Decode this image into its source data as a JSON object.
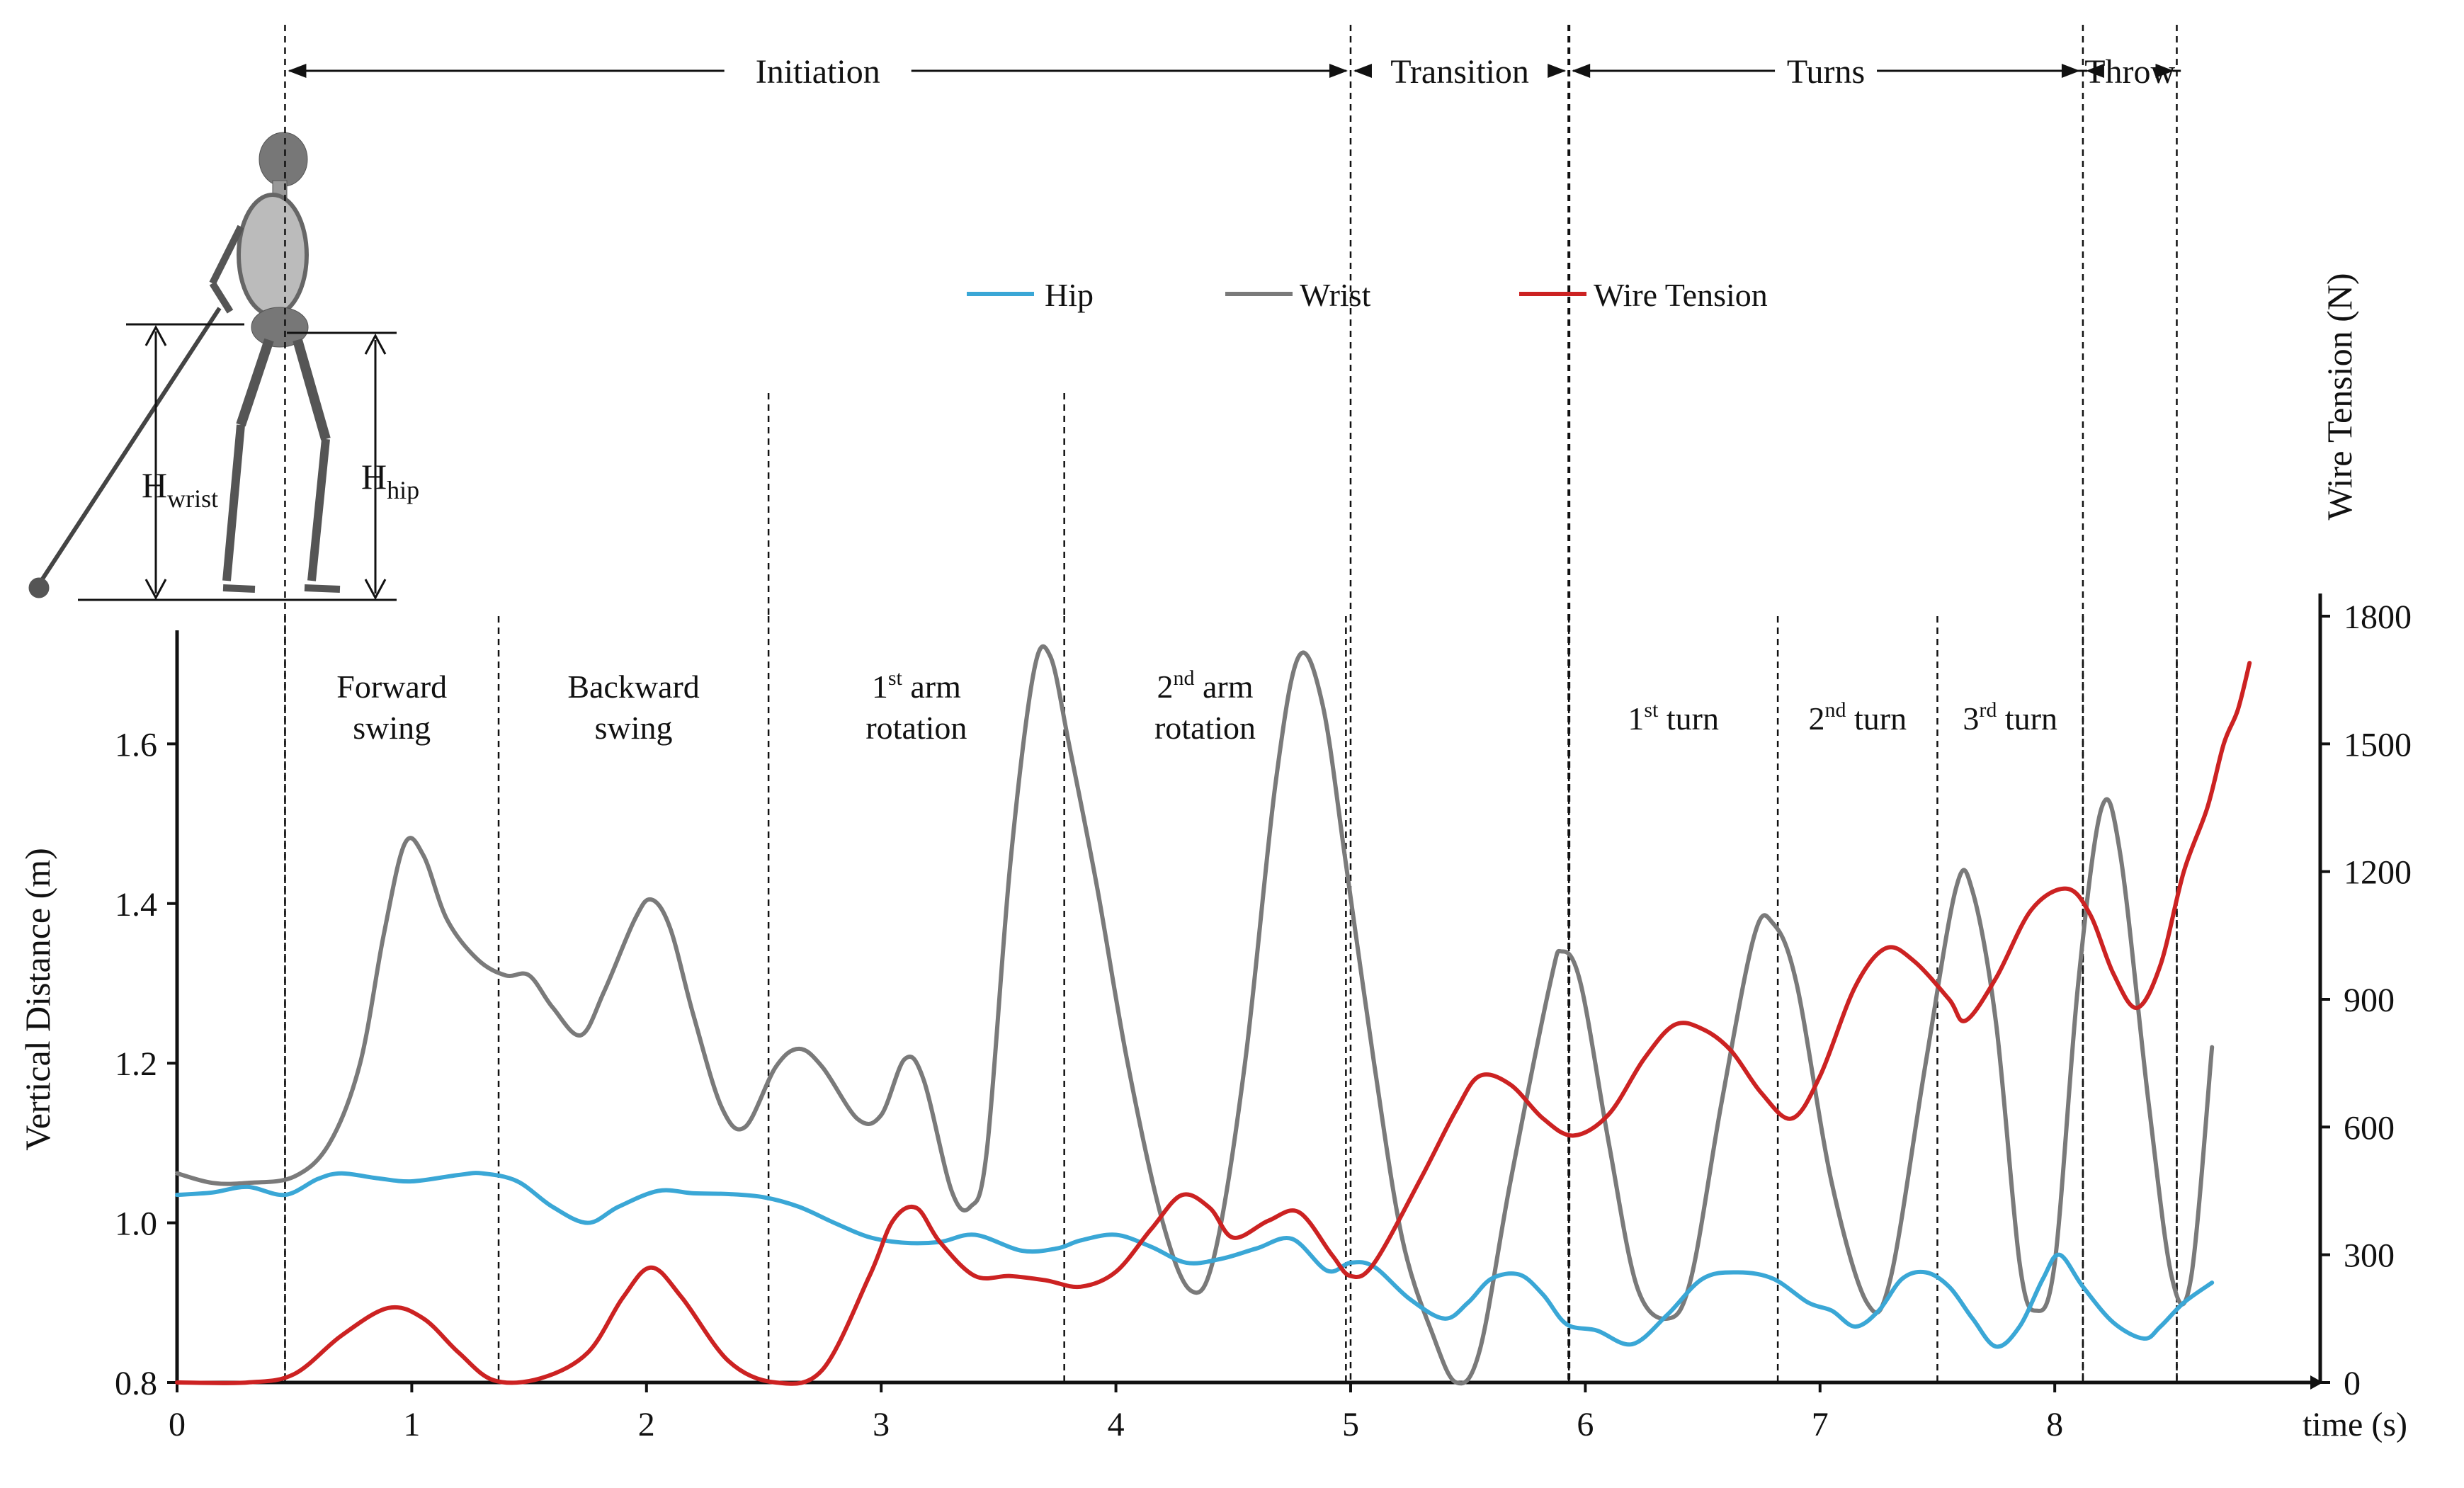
{
  "chart_data": {
    "type": "line",
    "xlabel": "time (s)",
    "ylabel": "Vertical Distance (m)",
    "y2label": "Wire Tension (N)",
    "xlim": [
      0,
      8.6
    ],
    "ylim": [
      0.8,
      1.76
    ],
    "y2lim": [
      0,
      1800
    ],
    "xticks": [
      "0",
      "1",
      "2",
      "3",
      "4",
      "5",
      "6",
      "7",
      "8"
    ],
    "yticks": [
      "0.8",
      "1.0",
      "1.2",
      "1.4",
      "1.6"
    ],
    "y2ticks": [
      "0",
      "300",
      "600",
      "900",
      "1200",
      "1500",
      "1800"
    ],
    "legend_position": "top-center",
    "series": [
      {
        "name": "Hip",
        "axis": "left",
        "color": "#3aa7d6",
        "points": [
          [
            0.0,
            1.035
          ],
          [
            0.15,
            1.038
          ],
          [
            0.3,
            1.045
          ],
          [
            0.46,
            1.035
          ],
          [
            0.6,
            1.055
          ],
          [
            0.7,
            1.062
          ],
          [
            0.85,
            1.056
          ],
          [
            1.0,
            1.052
          ],
          [
            1.2,
            1.06
          ],
          [
            1.3,
            1.062
          ],
          [
            1.45,
            1.052
          ],
          [
            1.6,
            1.02
          ],
          [
            1.75,
            1.0
          ],
          [
            1.88,
            1.02
          ],
          [
            2.05,
            1.04
          ],
          [
            2.2,
            1.037
          ],
          [
            2.35,
            1.036
          ],
          [
            2.5,
            1.032
          ],
          [
            2.65,
            1.02
          ],
          [
            2.8,
            1.0
          ],
          [
            2.95,
            0.982
          ],
          [
            3.1,
            0.975
          ],
          [
            3.25,
            0.976
          ],
          [
            3.4,
            0.985
          ],
          [
            3.6,
            0.965
          ],
          [
            3.75,
            0.968
          ],
          [
            3.85,
            0.978
          ],
          [
            4.0,
            0.985
          ],
          [
            4.15,
            0.97
          ],
          [
            4.3,
            0.95
          ],
          [
            4.45,
            0.955
          ],
          [
            4.6,
            0.968
          ],
          [
            4.75,
            0.98
          ],
          [
            4.9,
            0.94
          ],
          [
            5.0,
            0.95
          ],
          [
            5.1,
            0.945
          ],
          [
            5.25,
            0.905
          ],
          [
            5.4,
            0.88
          ],
          [
            5.5,
            0.9
          ],
          [
            5.6,
            0.93
          ],
          [
            5.72,
            0.935
          ],
          [
            5.82,
            0.91
          ],
          [
            5.92,
            0.873
          ],
          [
            6.05,
            0.865
          ],
          [
            6.2,
            0.848
          ],
          [
            6.35,
            0.885
          ],
          [
            6.5,
            0.93
          ],
          [
            6.65,
            0.938
          ],
          [
            6.8,
            0.93
          ],
          [
            6.95,
            0.9
          ],
          [
            7.05,
            0.89
          ],
          [
            7.15,
            0.87
          ],
          [
            7.25,
            0.89
          ],
          [
            7.35,
            0.93
          ],
          [
            7.45,
            0.938
          ],
          [
            7.55,
            0.92
          ],
          [
            7.65,
            0.88
          ],
          [
            7.75,
            0.845
          ],
          [
            7.85,
            0.87
          ],
          [
            7.95,
            0.93
          ],
          [
            8.02,
            0.96
          ],
          [
            8.12,
            0.92
          ],
          [
            8.25,
            0.875
          ],
          [
            8.38,
            0.855
          ],
          [
            8.45,
            0.87
          ],
          [
            8.55,
            0.9
          ],
          [
            8.67,
            0.925
          ]
        ]
      },
      {
        "name": "Wrist",
        "axis": "left",
        "color": "#7a7a7a",
        "points": [
          [
            0.0,
            1.062
          ],
          [
            0.15,
            1.05
          ],
          [
            0.3,
            1.05
          ],
          [
            0.5,
            1.058
          ],
          [
            0.65,
            1.1
          ],
          [
            0.78,
            1.2
          ],
          [
            0.88,
            1.36
          ],
          [
            0.97,
            1.475
          ],
          [
            1.05,
            1.46
          ],
          [
            1.15,
            1.38
          ],
          [
            1.28,
            1.33
          ],
          [
            1.4,
            1.31
          ],
          [
            1.5,
            1.31
          ],
          [
            1.6,
            1.27
          ],
          [
            1.72,
            1.235
          ],
          [
            1.82,
            1.29
          ],
          [
            1.95,
            1.38
          ],
          [
            2.02,
            1.405
          ],
          [
            2.1,
            1.37
          ],
          [
            2.2,
            1.26
          ],
          [
            2.32,
            1.145
          ],
          [
            2.42,
            1.12
          ],
          [
            2.55,
            1.195
          ],
          [
            2.65,
            1.218
          ],
          [
            2.75,
            1.195
          ],
          [
            2.9,
            1.13
          ],
          [
            3.0,
            1.135
          ],
          [
            3.1,
            1.205
          ],
          [
            3.18,
            1.18
          ],
          [
            3.3,
            1.04
          ],
          [
            3.38,
            1.02
          ],
          [
            3.45,
            1.09
          ],
          [
            3.55,
            1.45
          ],
          [
            3.65,
            1.69
          ],
          [
            3.72,
            1.71
          ],
          [
            3.8,
            1.6
          ],
          [
            3.92,
            1.42
          ],
          [
            4.05,
            1.2
          ],
          [
            4.2,
            1.0
          ],
          [
            4.32,
            0.915
          ],
          [
            4.42,
            0.96
          ],
          [
            4.55,
            1.2
          ],
          [
            4.68,
            1.55
          ],
          [
            4.78,
            1.71
          ],
          [
            4.88,
            1.65
          ],
          [
            4.98,
            1.45
          ],
          [
            5.1,
            1.2
          ],
          [
            5.22,
            0.98
          ],
          [
            5.35,
            0.86
          ],
          [
            5.45,
            0.8
          ],
          [
            5.55,
            0.84
          ],
          [
            5.68,
            1.05
          ],
          [
            5.85,
            1.3
          ],
          [
            5.9,
            1.34
          ],
          [
            5.98,
            1.3
          ],
          [
            6.1,
            1.1
          ],
          [
            6.22,
            0.92
          ],
          [
            6.35,
            0.88
          ],
          [
            6.45,
            0.93
          ],
          [
            6.58,
            1.15
          ],
          [
            6.72,
            1.36
          ],
          [
            6.8,
            1.375
          ],
          [
            6.9,
            1.3
          ],
          [
            7.05,
            1.05
          ],
          [
            7.2,
            0.9
          ],
          [
            7.3,
            0.93
          ],
          [
            7.45,
            1.2
          ],
          [
            7.58,
            1.42
          ],
          [
            7.65,
            1.415
          ],
          [
            7.75,
            1.25
          ],
          [
            7.85,
            0.95
          ],
          [
            7.92,
            0.89
          ],
          [
            8.0,
            0.95
          ],
          [
            8.1,
            1.3
          ],
          [
            8.2,
            1.52
          ],
          [
            8.28,
            1.46
          ],
          [
            8.4,
            1.15
          ],
          [
            8.5,
            0.93
          ],
          [
            8.58,
            0.93
          ],
          [
            8.67,
            1.22
          ]
        ]
      },
      {
        "name": "Wire Tension",
        "axis": "right",
        "color": "#cc2222",
        "points": [
          [
            0.0,
            0
          ],
          [
            0.3,
            0
          ],
          [
            0.5,
            20
          ],
          [
            0.7,
            110
          ],
          [
            0.9,
            175
          ],
          [
            1.05,
            150
          ],
          [
            1.2,
            70
          ],
          [
            1.35,
            5
          ],
          [
            1.55,
            10
          ],
          [
            1.75,
            70
          ],
          [
            1.9,
            200
          ],
          [
            2.02,
            270
          ],
          [
            2.15,
            200
          ],
          [
            2.35,
            50
          ],
          [
            2.55,
            0
          ],
          [
            2.75,
            30
          ],
          [
            2.95,
            250
          ],
          [
            3.05,
            380
          ],
          [
            3.15,
            410
          ],
          [
            3.25,
            330
          ],
          [
            3.4,
            250
          ],
          [
            3.55,
            250
          ],
          [
            3.7,
            240
          ],
          [
            3.85,
            225
          ],
          [
            4.0,
            260
          ],
          [
            4.15,
            360
          ],
          [
            4.28,
            440
          ],
          [
            4.4,
            410
          ],
          [
            4.5,
            340
          ],
          [
            4.65,
            380
          ],
          [
            4.78,
            400
          ],
          [
            4.92,
            300
          ],
          [
            5.0,
            250
          ],
          [
            5.1,
            280
          ],
          [
            5.3,
            480
          ],
          [
            5.45,
            640
          ],
          [
            5.55,
            720
          ],
          [
            5.68,
            700
          ],
          [
            5.82,
            620
          ],
          [
            5.95,
            580
          ],
          [
            6.1,
            630
          ],
          [
            6.25,
            760
          ],
          [
            6.38,
            840
          ],
          [
            6.5,
            830
          ],
          [
            6.62,
            780
          ],
          [
            6.75,
            680
          ],
          [
            6.88,
            620
          ],
          [
            7.0,
            720
          ],
          [
            7.15,
            930
          ],
          [
            7.28,
            1020
          ],
          [
            7.4,
            990
          ],
          [
            7.55,
            900
          ],
          [
            7.62,
            850
          ],
          [
            7.75,
            950
          ],
          [
            7.9,
            1110
          ],
          [
            8.05,
            1160
          ],
          [
            8.15,
            1100
          ],
          [
            8.25,
            960
          ],
          [
            8.35,
            880
          ],
          [
            8.45,
            980
          ],
          [
            8.55,
            1200
          ],
          [
            8.65,
            1350
          ],
          [
            8.72,
            1500
          ],
          [
            8.78,
            1580
          ],
          [
            8.83,
            1690
          ]
        ]
      }
    ],
    "phase_boundaries": [
      0.46,
      5.0,
      5.93,
      8.12,
      8.52
    ],
    "phases": [
      "Initiation",
      "Transition",
      "Turns",
      "Throw"
    ],
    "subphase_boundaries": [
      0.46,
      1.37,
      2.52,
      3.78,
      4.98,
      5.93,
      6.82,
      7.5,
      8.12,
      8.52
    ],
    "subphases": [
      {
        "line1": "Forward",
        "line2": "swing"
      },
      {
        "line1": "Backward",
        "line2": "swing"
      },
      {
        "line1": "1",
        "sup": "st",
        "rest": " arm",
        "line2": "rotation"
      },
      {
        "line1": "2",
        "sup": "nd",
        "rest": " arm",
        "line2": "rotation"
      },
      {
        "line1": "1",
        "sup": "st",
        "rest": " turn"
      },
      {
        "line1": "2",
        "sup": "nd",
        "rest": " turn"
      },
      {
        "line1": "3",
        "sup": "rd",
        "rest": " turn"
      }
    ],
    "figure_labels": {
      "h_wrist_base": "H",
      "h_wrist_sub": "wrist",
      "h_hip_base": "H",
      "h_hip_sub": "hip"
    }
  }
}
